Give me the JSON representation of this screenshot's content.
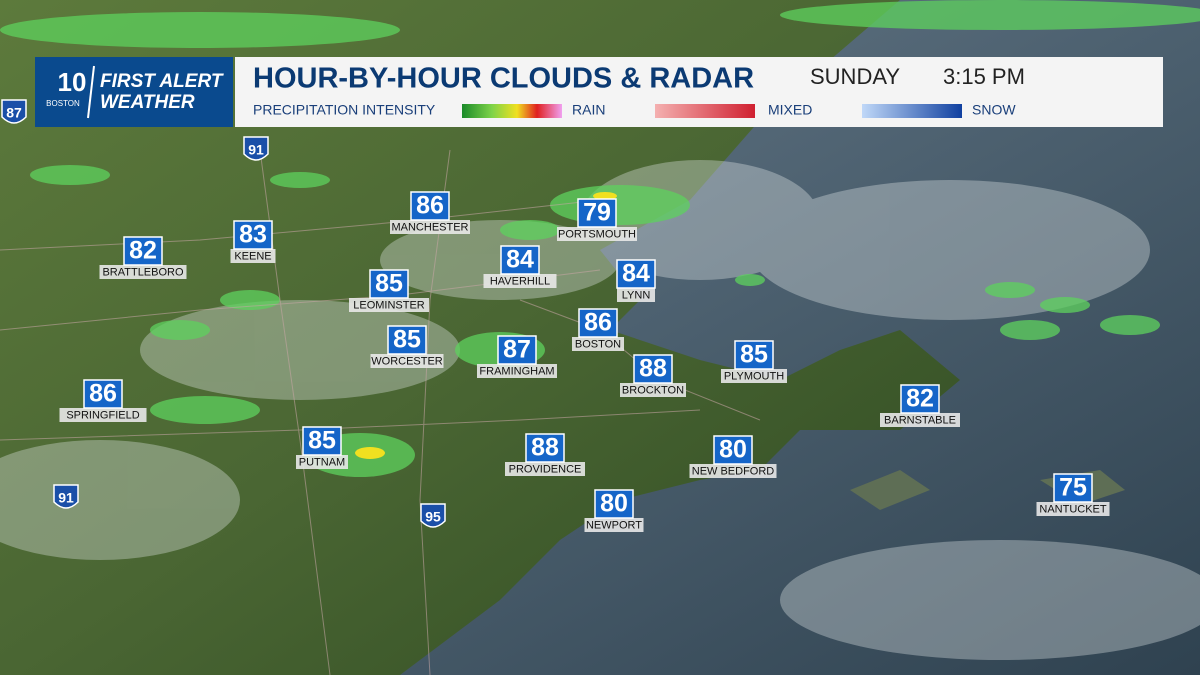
{
  "logo": {
    "channel": "10",
    "station": "BOSTON",
    "line1": "FIRST ALERT",
    "line2": "WEATHER"
  },
  "header": {
    "title": "HOUR-BY-HOUR CLOUDS & RADAR",
    "day": "SUNDAY",
    "time": "3:15 PM"
  },
  "legend": {
    "label": "PRECIPITATION INTENSITY",
    "items": [
      "RAIN",
      "MIXED",
      "SNOW"
    ]
  },
  "cities": [
    {
      "name": "MANCHESTER",
      "temp": "86"
    },
    {
      "name": "PORTSMOUTH",
      "temp": "79"
    },
    {
      "name": "BRATTLEBORO",
      "temp": "82"
    },
    {
      "name": "KEENE",
      "temp": "83"
    },
    {
      "name": "HAVERHILL",
      "temp": "84"
    },
    {
      "name": "LYNN",
      "temp": "84"
    },
    {
      "name": "LEOMINSTER",
      "temp": "85"
    },
    {
      "name": "BOSTON",
      "temp": "86"
    },
    {
      "name": "WORCESTER",
      "temp": "85"
    },
    {
      "name": "FRAMINGHAM",
      "temp": "87"
    },
    {
      "name": "BROCKTON",
      "temp": "88"
    },
    {
      "name": "PLYMOUTH",
      "temp": "85"
    },
    {
      "name": "SPRINGFIELD",
      "temp": "86"
    },
    {
      "name": "BARNSTABLE",
      "temp": "82"
    },
    {
      "name": "PUTNAM",
      "temp": "85"
    },
    {
      "name": "PROVIDENCE",
      "temp": "88"
    },
    {
      "name": "NEW BEDFORD",
      "temp": "80"
    },
    {
      "name": "NEWPORT",
      "temp": "80"
    },
    {
      "name": "NANTUCKET",
      "temp": "75"
    }
  ],
  "highways": [
    "87",
    "91",
    "91",
    "95"
  ]
}
